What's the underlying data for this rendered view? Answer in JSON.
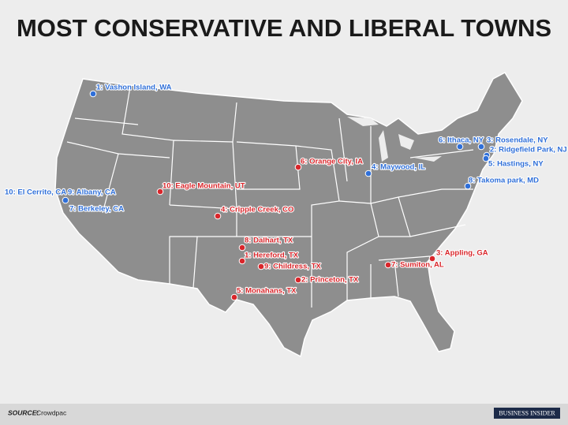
{
  "title": "MOST CONSERVATIVE AND LIBERAL TOWNS",
  "liberal": {
    "color": "#2f6fd8",
    "towns": [
      "1: Vashon Island, WA",
      "6: Ithaca, NY",
      "3: Rosendale, NY",
      "2: Ridgefield Park, NJ",
      "5: Hastings, NY",
      "4: Maywood, IL",
      "8: Takoma park, MD",
      "10: El Cerrito, CA",
      "9: Albany, CA",
      "7: Berkeley, CA"
    ]
  },
  "conservative": {
    "color": "#d9262b",
    "towns": [
      "6: Orange City, IA",
      "10: Eagle Mountain, UT",
      "4: Cripple Creek, CO",
      "8: Dalhart, TX",
      "1: Hereford, TX",
      "9: Childress, TX",
      "2: Princeton, TX",
      "5: Monahans, TX",
      "3: Appling, GA",
      "7: Sumiton, AL"
    ]
  },
  "footer": {
    "source_label": "SOURCE:",
    "source": "Crowdpac",
    "logo": "BUSINESS INSIDER"
  }
}
